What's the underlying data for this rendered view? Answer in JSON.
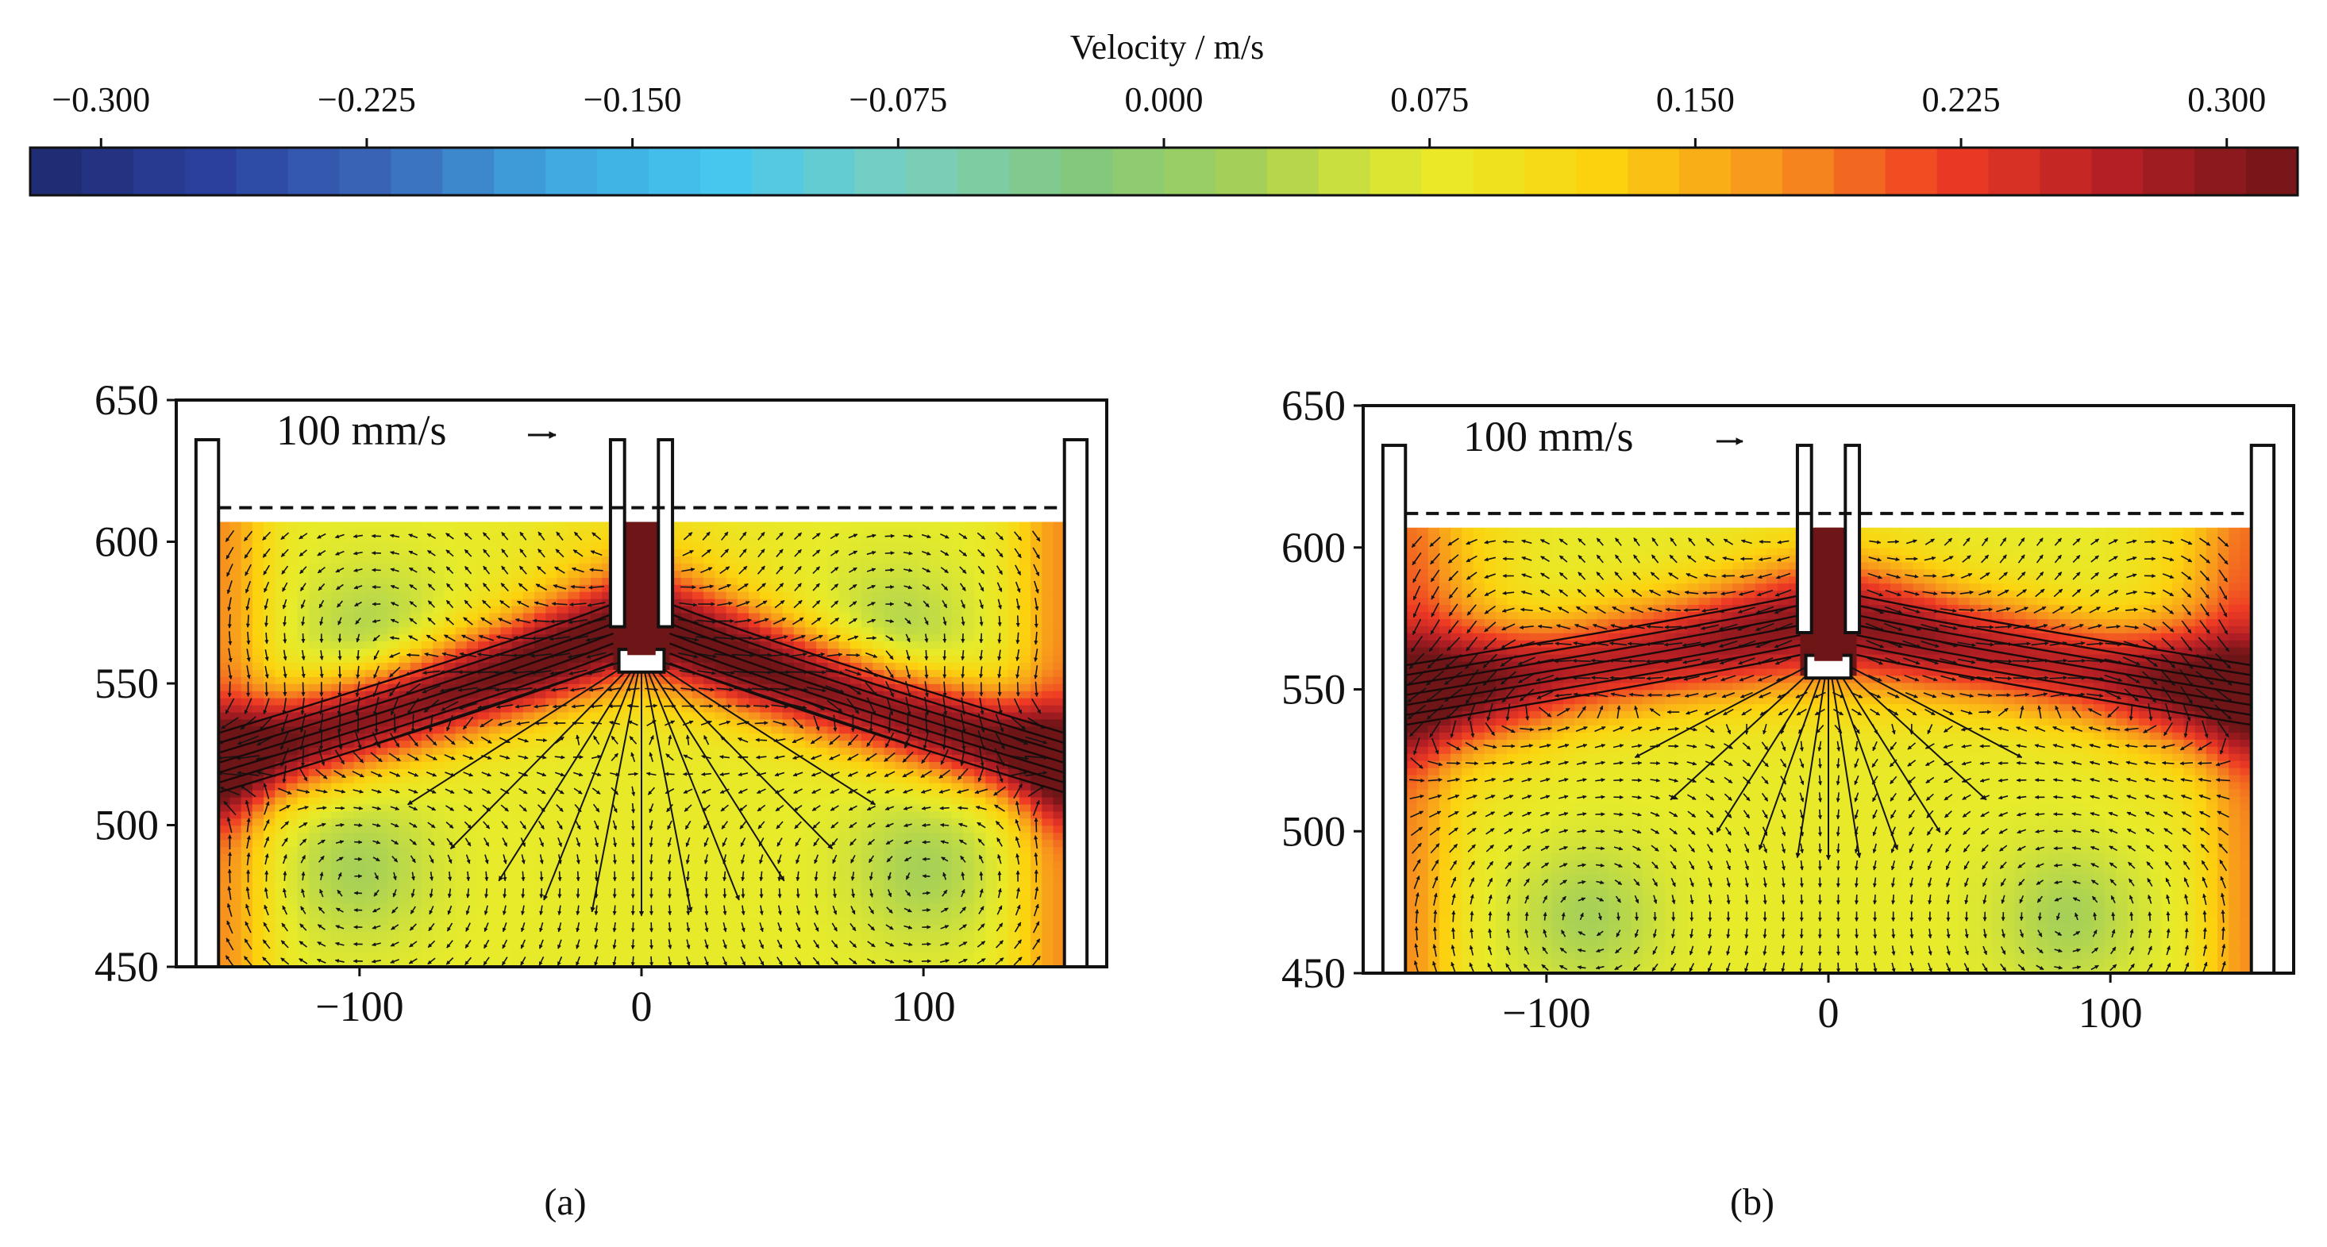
{
  "colorbar": {
    "title": "Velocity / m/s",
    "ticks": [
      -0.3,
      -0.225,
      -0.15,
      -0.075,
      0.0,
      0.075,
      0.15,
      0.225,
      0.3
    ],
    "tick_labels": [
      "−0.300",
      "−0.225",
      "−0.150",
      "−0.075",
      "0.000",
      "0.075",
      "0.150",
      "0.225",
      "0.300"
    ],
    "range": [
      -0.32,
      0.32
    ],
    "levels": 44,
    "stops": [
      "#1e2a6e",
      "#2a3f9a",
      "#3a67b8",
      "#3fa7e0",
      "#45c7ee",
      "#79cfc0",
      "#82c87f",
      "#a6d057",
      "#e7eb2a",
      "#fcd30f",
      "#f7941d",
      "#ee3a24",
      "#b11e24",
      "#6e1517"
    ]
  },
  "chart_data": [
    {
      "panel": "(a)",
      "type": "heatmap",
      "subtype": "velocity magnitude contour with quiver overlay",
      "xlim": [
        -165,
        165
      ],
      "ylim": [
        450,
        650
      ],
      "x_ticks": [
        -100,
        0,
        100
      ],
      "x_tick_labels": [
        "−100",
        "0",
        "100"
      ],
      "y_ticks": [
        450,
        500,
        550,
        600,
        650
      ],
      "y_tick_labels": [
        "450",
        "500",
        "550",
        "600",
        "650"
      ],
      "xlabel": "",
      "ylabel": "",
      "quiver_key": "100 mm/s",
      "free_surface_y": 612,
      "fluid_top_y": 607,
      "fluid_half_width": 150,
      "hot_band": {
        "center_x": 0,
        "y_at_center": 572,
        "y_at_wall": 522,
        "peak_velocity": 0.32
      },
      "vortices": [
        {
          "x": -95,
          "y": 565
        },
        {
          "x": 90,
          "y": 565
        },
        {
          "x": -100,
          "y": 485
        },
        {
          "x": 100,
          "y": 485
        }
      ],
      "jet_fan": {
        "origin": [
          0,
          560
        ],
        "reach_y": 468
      }
    },
    {
      "panel": "(b)",
      "type": "heatmap",
      "subtype": "velocity magnitude contour with quiver overlay",
      "xlim": [
        -165,
        165
      ],
      "ylim": [
        450,
        650
      ],
      "x_ticks": [
        -100,
        0,
        100
      ],
      "x_tick_labels": [
        "−100",
        "0",
        "100"
      ],
      "y_ticks": [
        450,
        500,
        550,
        600,
        650
      ],
      "y_tick_labels": [
        "450",
        "500",
        "550",
        "600",
        "650"
      ],
      "xlabel": "",
      "ylabel": "",
      "quiver_key": "100 mm/s",
      "free_surface_y": 612,
      "fluid_top_y": 607,
      "fluid_half_width": 150,
      "hot_band": {
        "center_x": 0,
        "y_at_center": 575,
        "y_at_wall": 548,
        "peak_velocity": 0.26
      },
      "vortices": [
        {
          "x": -115,
          "y": 575
        },
        {
          "x": 115,
          "y": 575
        },
        {
          "x": -85,
          "y": 470
        },
        {
          "x": 85,
          "y": 470
        }
      ],
      "jet_fan": {
        "origin": [
          0,
          562
        ],
        "reach_y": 490
      }
    }
  ],
  "captions": [
    "(a)",
    "(b)"
  ]
}
